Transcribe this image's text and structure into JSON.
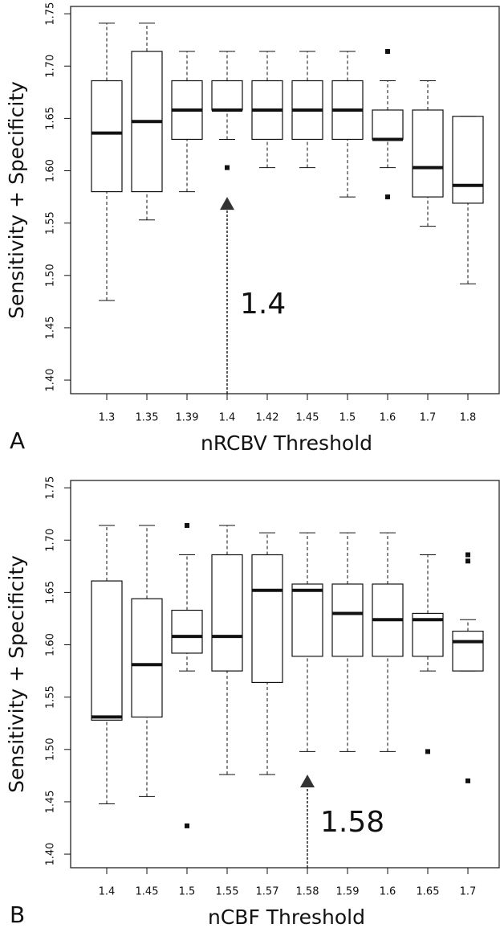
{
  "chart_data": [
    {
      "type": "box",
      "panel_label": "A",
      "x_label": "nRCBV Threshold",
      "y_label": "Sensitivity + Specificity",
      "categories": [
        "1.3",
        "1.35",
        "1.39",
        "1.4",
        "1.42",
        "1.45",
        "1.5",
        "1.6",
        "1.7",
        "1.8"
      ],
      "boxes": [
        {
          "min": 1.476,
          "q1": 1.58,
          "median": 1.636,
          "q3": 1.686,
          "max": 1.741,
          "outliers": []
        },
        {
          "min": 1.553,
          "q1": 1.58,
          "median": 1.647,
          "q3": 1.714,
          "max": 1.741,
          "outliers": []
        },
        {
          "min": 1.58,
          "q1": 1.63,
          "median": 1.658,
          "q3": 1.686,
          "max": 1.714,
          "outliers": []
        },
        {
          "min": 1.63,
          "q1": 1.658,
          "median": 1.658,
          "q3": 1.686,
          "max": 1.714,
          "outliers": [
            1.603
          ]
        },
        {
          "min": 1.603,
          "q1": 1.63,
          "median": 1.658,
          "q3": 1.686,
          "max": 1.714,
          "outliers": []
        },
        {
          "min": 1.603,
          "q1": 1.63,
          "median": 1.658,
          "q3": 1.686,
          "max": 1.714,
          "outliers": []
        },
        {
          "min": 1.575,
          "q1": 1.63,
          "median": 1.658,
          "q3": 1.686,
          "max": 1.714,
          "outliers": []
        },
        {
          "min": 1.603,
          "q1": 1.63,
          "median": 1.63,
          "q3": 1.658,
          "max": 1.686,
          "outliers": [
            1.714,
            1.575
          ]
        },
        {
          "min": 1.547,
          "q1": 1.575,
          "median": 1.603,
          "q3": 1.658,
          "max": 1.686,
          "outliers": []
        },
        {
          "min": 1.492,
          "q1": 1.569,
          "median": 1.586,
          "q3": 1.652,
          "max": 1.652,
          "outliers": []
        }
      ],
      "ylim": [
        1.387,
        1.757
      ],
      "yticks": [
        {
          "value": 1.4,
          "label": "1.40"
        },
        1.45,
        {
          "value": 1.5,
          "label": "1.50"
        },
        1.55,
        {
          "value": 1.6,
          "label": "1.60"
        },
        1.65,
        {
          "value": 1.7,
          "label": "1.70"
        },
        1.75
      ],
      "annotation": {
        "text": "1.4",
        "x": "1.4",
        "y": 1.575
      }
    },
    {
      "type": "box",
      "panel_label": "B",
      "x_label": "nCBF Threshold",
      "y_label": "Sensitivity + Specificity",
      "categories": [
        "1.4",
        "1.45",
        "1.5",
        "1.55",
        "1.57",
        "1.58",
        "1.59",
        "1.6",
        "1.65",
        "1.7"
      ],
      "boxes": [
        {
          "min": 1.448,
          "q1": 1.528,
          "median": 1.531,
          "q3": 1.661,
          "max": 1.714,
          "outliers": []
        },
        {
          "min": 1.455,
          "q1": 1.531,
          "median": 1.581,
          "q3": 1.644,
          "max": 1.714,
          "outliers": []
        },
        {
          "min": 1.575,
          "q1": 1.592,
          "median": 1.608,
          "q3": 1.633,
          "max": 1.686,
          "outliers": [
            1.714,
            1.427
          ]
        },
        {
          "min": 1.476,
          "q1": 1.575,
          "median": 1.608,
          "q3": 1.686,
          "max": 1.714,
          "outliers": []
        },
        {
          "min": 1.476,
          "q1": 1.564,
          "median": 1.652,
          "q3": 1.686,
          "max": 1.707,
          "outliers": []
        },
        {
          "min": 1.498,
          "q1": 1.589,
          "median": 1.652,
          "q3": 1.658,
          "max": 1.707,
          "outliers": []
        },
        {
          "min": 1.498,
          "q1": 1.589,
          "median": 1.63,
          "q3": 1.658,
          "max": 1.707,
          "outliers": []
        },
        {
          "min": 1.498,
          "q1": 1.589,
          "median": 1.624,
          "q3": 1.658,
          "max": 1.707,
          "outliers": []
        },
        {
          "min": 1.575,
          "q1": 1.589,
          "median": 1.624,
          "q3": 1.63,
          "max": 1.686,
          "outliers": [
            1.498
          ]
        },
        {
          "min": 1.575,
          "q1": 1.575,
          "median": 1.603,
          "q3": 1.613,
          "max": 1.624,
          "outliers": [
            1.686,
            1.68,
            1.47
          ]
        }
      ],
      "ylim": [
        1.387,
        1.757
      ],
      "yticks": [
        {
          "value": 1.4,
          "label": "1.40"
        },
        1.45,
        {
          "value": 1.5,
          "label": "1.50"
        },
        1.55,
        {
          "value": 1.6,
          "label": "1.60"
        },
        1.65,
        {
          "value": 1.7,
          "label": "1.70"
        },
        1.75
      ],
      "annotation": {
        "text": "1.58",
        "x": "1.58",
        "y": 1.476
      }
    }
  ]
}
